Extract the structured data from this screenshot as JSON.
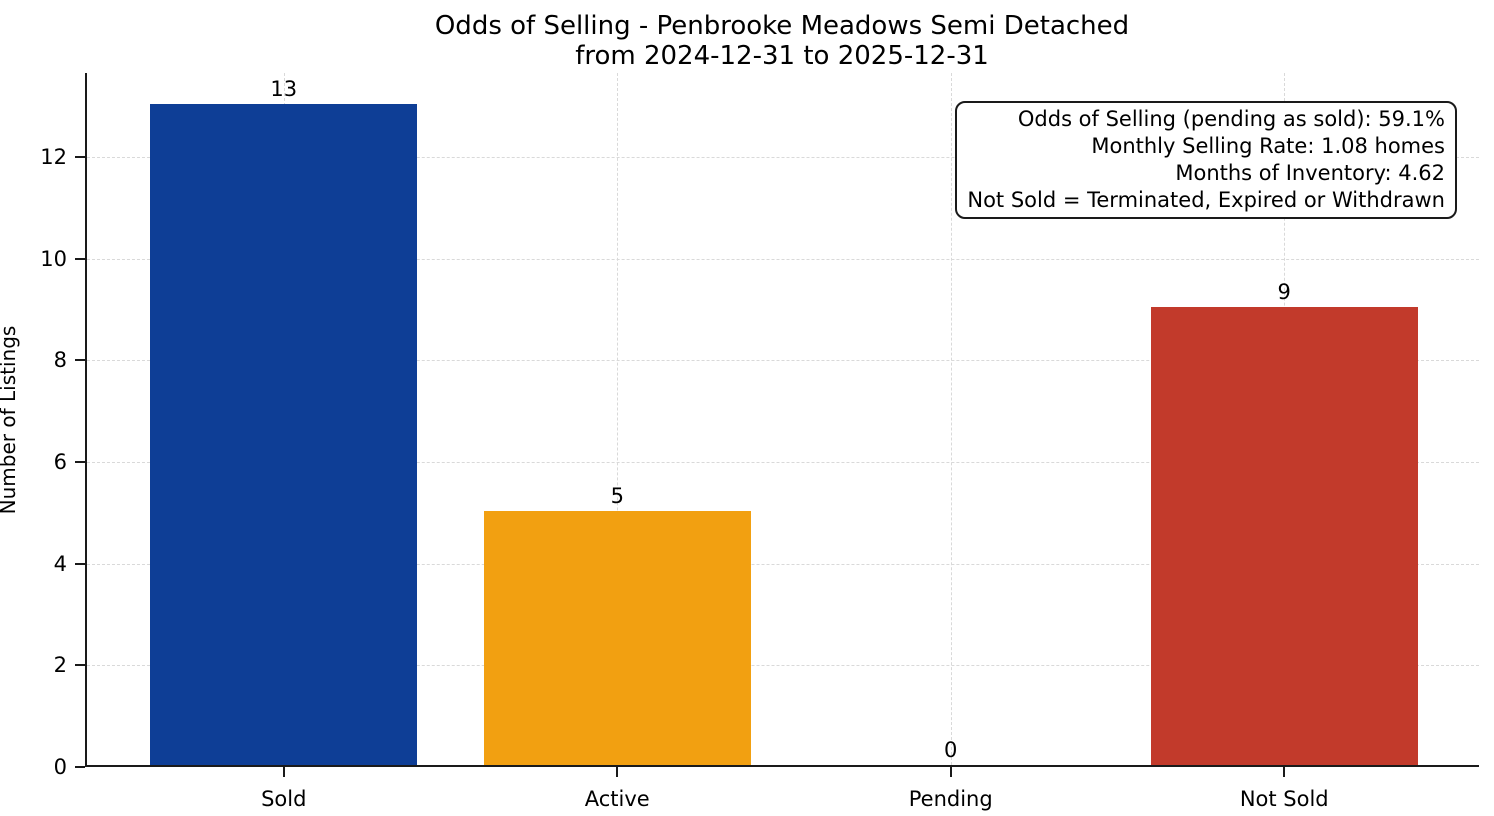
{
  "title": {
    "line1": "Odds of Selling - Penbrooke Meadows Semi Detached",
    "line2": "from 2024-12-31 to 2025-12-31"
  },
  "annotation": {
    "lines": [
      "Odds of Selling (pending as sold): 59.1%",
      "Monthly Selling Rate: 1.08 homes",
      "Months of Inventory: 4.62",
      "Not Sold = Terminated, Expired or Withdrawn"
    ]
  },
  "chart_data": {
    "type": "bar",
    "title": "Odds of Selling - Penbrooke Meadows Semi Detached\nfrom 2024-12-31 to 2025-12-31",
    "categories": [
      "Sold",
      "Active",
      "Pending",
      "Not Sold"
    ],
    "values": [
      13,
      5,
      0,
      9
    ],
    "bar_labels": [
      "13",
      "5",
      "0",
      "9"
    ],
    "bar_colors": [
      "#0e3e96",
      "#f2a011",
      null,
      "#c23a2b"
    ],
    "xlabel": "",
    "ylabel": "Number of Listings",
    "ylim": [
      0,
      13.65
    ],
    "yticks": [
      0,
      2,
      4,
      6,
      8,
      10,
      12
    ],
    "grid": "dashed, both axes",
    "legend": "none"
  },
  "colors": {
    "axis_spine": "#1a1a1a",
    "gridline": "#d9d9d9",
    "text": "#000000",
    "background": "#ffffff",
    "bar_sold": "#0e3e96",
    "bar_active": "#f2a011",
    "bar_not_sold": "#c23a2b"
  }
}
